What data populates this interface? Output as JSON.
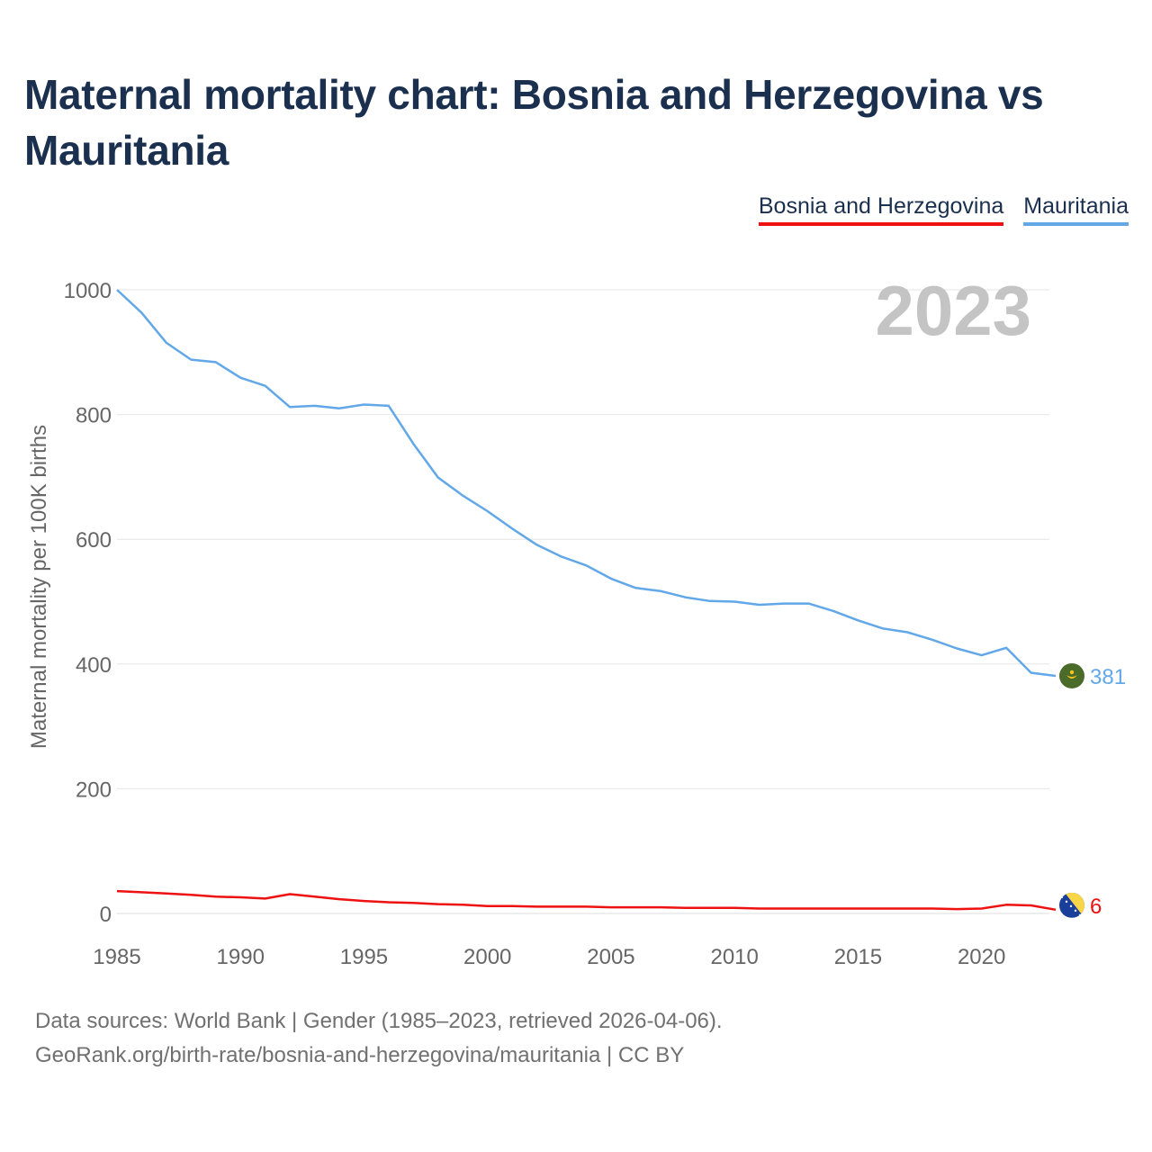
{
  "title": "Maternal mortality chart: Bosnia and Herzegovina vs Mauritania",
  "legend": [
    {
      "name": "Bosnia and Herzegovina",
      "color": "#ee1111"
    },
    {
      "name": "Mauritania",
      "color": "#62a8e8"
    }
  ],
  "footer": {
    "line1": "Data sources: World Bank | Gender (1985–2023, retrieved 2026-04-06).",
    "line2": "GeoRank.org/birth-rate/bosnia-and-herzegovina/mauritania | CC BY"
  },
  "chart_data": {
    "type": "line",
    "title": "Maternal mortality chart: Bosnia and Herzegovina vs Mauritania",
    "xlabel": "",
    "ylabel": "Maternal mortality per 100K births",
    "year_label": "2023",
    "xlim": [
      1985,
      2023
    ],
    "ylim": [
      0,
      1000
    ],
    "x_ticks": [
      1985,
      1990,
      1995,
      2000,
      2005,
      2010,
      2015,
      2020
    ],
    "y_ticks": [
      0,
      200,
      400,
      600,
      800,
      1000
    ],
    "grid": true,
    "legend_position": "top-right",
    "x": [
      1985,
      1986,
      1987,
      1988,
      1989,
      1990,
      1991,
      1992,
      1993,
      1994,
      1995,
      1996,
      1997,
      1998,
      1999,
      2000,
      2001,
      2002,
      2003,
      2004,
      2005,
      2006,
      2007,
      2008,
      2009,
      2010,
      2011,
      2012,
      2013,
      2014,
      2015,
      2016,
      2017,
      2018,
      2019,
      2020,
      2021,
      2022,
      2023
    ],
    "series": [
      {
        "name": "Mauritania",
        "color": "#62a8e8",
        "end_label": "381",
        "flag": "mauritania-flag",
        "values": [
          1000,
          963,
          915,
          888,
          884,
          859,
          846,
          812,
          814,
          810,
          816,
          814,
          753,
          699,
          670,
          645,
          617,
          591,
          572,
          558,
          537,
          522,
          517,
          507,
          501,
          500,
          495,
          497,
          497,
          485,
          470,
          457,
          451,
          439,
          425,
          414,
          426,
          386,
          381
        ]
      },
      {
        "name": "Bosnia and Herzegovina",
        "color": "#ee1111",
        "end_label": "6",
        "flag": "bosnia-flag",
        "values": [
          36,
          34,
          32,
          30,
          27,
          26,
          24,
          31,
          27,
          23,
          20,
          18,
          17,
          15,
          14,
          12,
          12,
          11,
          11,
          11,
          10,
          10,
          10,
          9,
          9,
          9,
          8,
          8,
          8,
          8,
          8,
          8,
          8,
          8,
          7,
          8,
          14,
          13,
          6
        ]
      }
    ]
  }
}
